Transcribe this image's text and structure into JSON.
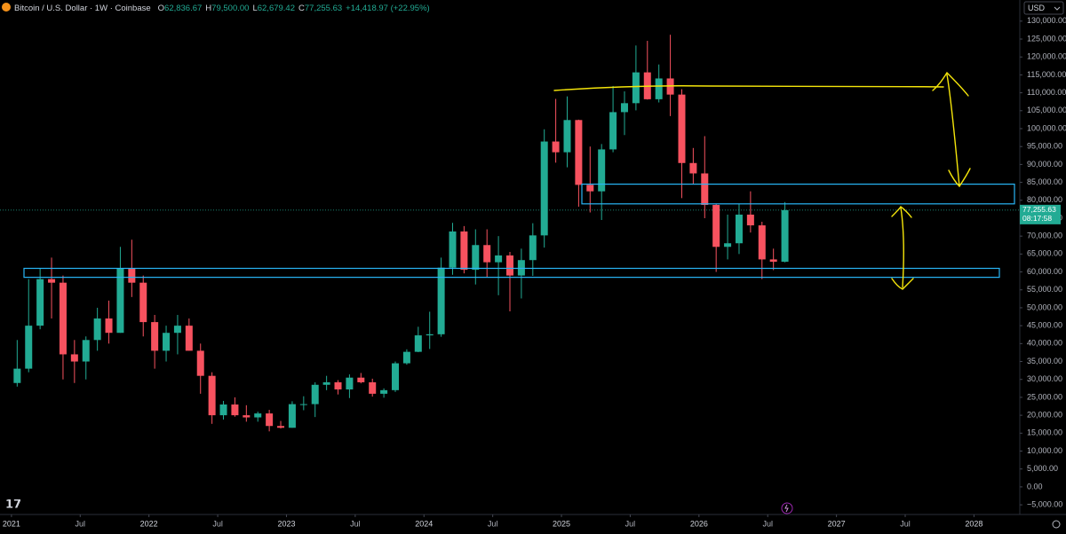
{
  "chart_data": {
    "type": "candlestick",
    "title": "Bitcoin / U.S. Dollar · 1W · Coinbase",
    "ohlc_header": [
      {
        "label": "O",
        "value": "62,836.67"
      },
      {
        "label": "H",
        "value": "79,500.00"
      },
      {
        "label": "L",
        "value": "62,679.42"
      },
      {
        "label": "C",
        "value": "77,255.63"
      }
    ],
    "change": "+14,418.97 (+22.95%)",
    "currency": "USD",
    "price_label": "77,255.63",
    "countdown": "08:17:58",
    "up_color": "#22ab94",
    "down_color": "#f7525f",
    "zone_color": "#29b6f6",
    "x": [
      "2021-01",
      "2021-02",
      "2021-03",
      "2021-04",
      "2021-05",
      "2021-06",
      "2021-07",
      "2021-08",
      "2021-09",
      "2021-10",
      "2021-11",
      "2021-12",
      "2022-01",
      "2022-02",
      "2022-03",
      "2022-04",
      "2022-05",
      "2022-06",
      "2022-07",
      "2022-08",
      "2022-09",
      "2022-10",
      "2022-11",
      "2022-12",
      "2023-01",
      "2023-02",
      "2023-03",
      "2023-04",
      "2023-05",
      "2023-06",
      "2023-07",
      "2023-08",
      "2023-09",
      "2023-10",
      "2023-11",
      "2023-12",
      "2024-01",
      "2024-02",
      "2024-03",
      "2024-04",
      "2024-05",
      "2024-06",
      "2024-07",
      "2024-08",
      "2024-09",
      "2024-10",
      "2024-11",
      "2024-12",
      "2025-01",
      "2025-02",
      "2025-03",
      "2025-04",
      "2025-05",
      "2025-06",
      "2025-07",
      "2025-08",
      "2025-09",
      "2025-10",
      "2025-11",
      "2025-12",
      "2026-01",
      "2026-02",
      "2026-03",
      "2026-04",
      "2026-05",
      "2026-06",
      "2026-07",
      "2026-08"
    ],
    "open": [
      29000,
      33000,
      45000,
      58000,
      57000,
      37000,
      35000,
      41000,
      47000,
      43000,
      61000,
      57000,
      46000,
      38000,
      43000,
      45000,
      38000,
      31000,
      20000,
      23000,
      20000,
      19400,
      20500,
      17000,
      16500,
      23100,
      23100,
      28500,
      29200,
      27200,
      30500,
      29200,
      26000,
      27000,
      34500,
      37700,
      42300,
      42600,
      61200,
      71300,
      60600,
      67500,
      62700,
      64600,
      59000,
      63300,
      70200,
      96400,
      93400,
      102400,
      84300,
      82500,
      94200,
      104600,
      107100,
      115700,
      108200,
      114000,
      109500,
      90400,
      87500,
      78700,
      67000,
      68000,
      76000,
      73000,
      63500,
      62836.67
    ],
    "high": [
      41000,
      58000,
      61000,
      64000,
      59000,
      41000,
      42000,
      50000,
      52000,
      67000,
      69000,
      59000,
      48000,
      45000,
      48000,
      47000,
      40000,
      32000,
      24000,
      25000,
      22800,
      21000,
      21500,
      18400,
      23900,
      25300,
      29200,
      31000,
      29800,
      31400,
      31800,
      30200,
      27500,
      35000,
      38400,
      44700,
      48900,
      64000,
      73700,
      72800,
      71900,
      71900,
      70000,
      65600,
      66500,
      73600,
      99800,
      108300,
      109000,
      102500,
      95000,
      95700,
      111900,
      110400,
      123200,
      124500,
      117900,
      126200,
      111000,
      94600,
      97900,
      79000,
      76000,
      79000,
      82500,
      74000,
      66500,
      79500
    ],
    "low": [
      28000,
      32000,
      44000,
      47000,
      30000,
      29000,
      30000,
      38000,
      40000,
      43000,
      53000,
      42000,
      33000,
      35000,
      37000,
      38000,
      26000,
      17600,
      18800,
      19600,
      18200,
      18200,
      15500,
      16300,
      16500,
      21400,
      19500,
      27000,
      25800,
      24800,
      28900,
      25200,
      24900,
      26500,
      34100,
      37600,
      38500,
      41900,
      59200,
      59600,
      56500,
      58400,
      53500,
      49000,
      52600,
      58900,
      66800,
      90500,
      89200,
      78200,
      76600,
      74500,
      93400,
      98200,
      105100,
      108100,
      107300,
      103500,
      80600,
      84400,
      75000,
      60000,
      63500,
      65000,
      71000,
      58000,
      60500,
      62679.42
    ],
    "close": [
      33000,
      45000,
      58000,
      57000,
      37000,
      35000,
      41000,
      47000,
      43000,
      61000,
      57000,
      46000,
      38000,
      43000,
      45000,
      38000,
      31000,
      20000,
      23000,
      20000,
      19400,
      20500,
      17000,
      16500,
      23100,
      23100,
      28500,
      29200,
      27200,
      30500,
      29200,
      26000,
      27000,
      34500,
      37700,
      42300,
      42600,
      61200,
      71300,
      60600,
      67500,
      62700,
      64600,
      59000,
      63300,
      70200,
      96400,
      93400,
      102400,
      84300,
      82500,
      94200,
      104600,
      107100,
      115700,
      108200,
      114000,
      109500,
      90400,
      87500,
      78700,
      67000,
      68000,
      76000,
      73000,
      63500,
      62836.67,
      77255.63
    ],
    "zones": [
      {
        "ylim": [
          79000,
          84500
        ]
      },
      {
        "ylim": [
          58500,
          61000
        ]
      }
    ],
    "xlim": [
      "2020-12",
      "2028-05"
    ],
    "xticks": [
      {
        "value": "2021-01",
        "label": "2021"
      },
      {
        "value": "2021-07",
        "label": "Jul"
      },
      {
        "value": "2022-01",
        "label": "2022"
      },
      {
        "value": "2022-07",
        "label": "Jul"
      },
      {
        "value": "2023-01",
        "label": "2023"
      },
      {
        "value": "2023-07",
        "label": "Jul"
      },
      {
        "value": "2024-01",
        "label": "2024"
      },
      {
        "value": "2024-07",
        "label": "Jul"
      },
      {
        "value": "2025-01",
        "label": "2025"
      },
      {
        "value": "2025-07",
        "label": "Jul"
      },
      {
        "value": "2026-01",
        "label": "2026"
      },
      {
        "value": "2026-07",
        "label": "Jul"
      },
      {
        "value": "2027-01",
        "label": "2027"
      },
      {
        "value": "2027-07",
        "label": "Jul"
      },
      {
        "value": "2028-01",
        "label": "2028"
      }
    ],
    "ylim": [
      -7700,
      135900
    ],
    "yticks": [
      {
        "value": 130000,
        "label": "130,000.00"
      },
      {
        "value": 125000,
        "label": "125,000.00"
      },
      {
        "value": 120000,
        "label": "120,000.00"
      },
      {
        "value": 115000,
        "label": "115,000.00"
      },
      {
        "value": 110000,
        "label": "110,000.00"
      },
      {
        "value": 105000,
        "label": "105,000.00"
      },
      {
        "value": 100000,
        "label": "100,000.00"
      },
      {
        "value": 95000,
        "label": "95,000.00"
      },
      {
        "value": 90000,
        "label": "90,000.00"
      },
      {
        "value": 85000,
        "label": "85,000.00"
      },
      {
        "value": 80000,
        "label": "80,000.00"
      },
      {
        "value": 75000,
        "label": "75,000.00"
      },
      {
        "value": 70000,
        "label": "70,000.00"
      },
      {
        "value": 65000,
        "label": "65,000.00"
      },
      {
        "value": 60000,
        "label": "60,000.00"
      },
      {
        "value": 55000,
        "label": "55,000.00"
      },
      {
        "value": 50000,
        "label": "50,000.00"
      },
      {
        "value": 45000,
        "label": "45,000.00"
      },
      {
        "value": 40000,
        "label": "40,000.00"
      },
      {
        "value": 35000,
        "label": "35,000.00"
      },
      {
        "value": 30000,
        "label": "30,000.00"
      },
      {
        "value": 25000,
        "label": "25,000.00"
      },
      {
        "value": 20000,
        "label": "20,000.00"
      },
      {
        "value": 15000,
        "label": "15,000.00"
      },
      {
        "value": 10000,
        "label": "10,000.00"
      },
      {
        "value": 5000,
        "label": "5,000.00"
      },
      {
        "value": 0,
        "label": "0.00"
      },
      {
        "value": -5000,
        "label": "−5,000.00"
      }
    ]
  }
}
